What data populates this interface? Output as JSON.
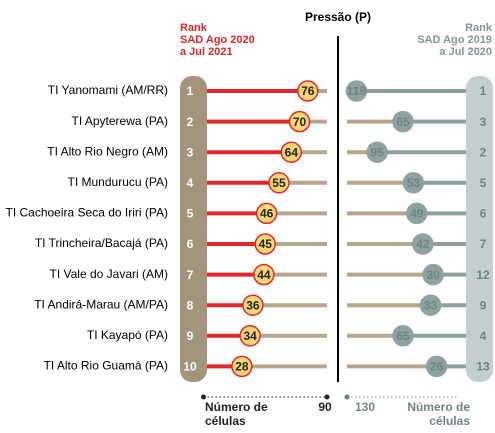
{
  "title": "Pressão (P)",
  "chart_data": [
    {
      "type": "lollipop",
      "title": [
        "Rank",
        "SAD Ago 2020",
        "a Jul 2021"
      ],
      "color": "#e3262b",
      "rest_color": "#b3a68a",
      "pill_color": "#a39579",
      "bubble_color": "#f7d774",
      "categories": [
        "TI Yanomami (AM/RR)",
        "TI Apyterewa (PA)",
        "TI Alto Rio Negro (AM)",
        "TI Mundurucu (PA)",
        "TI Cachoeira Seca do Iriri (PA)",
        "TI Trincheira/Bacajá (PA)",
        "TI Vale do Javari (AM)",
        "TI Andirá-Marau (AM/PA)",
        "TI Kayapó (PA)",
        "TI Alto Rio Guamá (PA)"
      ],
      "ranks": [
        1,
        2,
        3,
        4,
        5,
        6,
        7,
        8,
        9,
        10
      ],
      "values": [
        76,
        70,
        64,
        55,
        46,
        45,
        44,
        36,
        34,
        28
      ],
      "xlim": [
        0,
        90
      ],
      "xticks": [
        90
      ],
      "xlabel": [
        "Número de",
        "células"
      ]
    },
    {
      "type": "lollipop",
      "title": [
        "Rank",
        "SAD Ago 2019",
        "a Jul 2020"
      ],
      "color": "#8c9f9f",
      "rest_color": "#b3a68a",
      "pill_color": "#c3cfcf",
      "bubble_color": "#8fa2a2",
      "ranks": [
        1,
        3,
        2,
        5,
        6,
        7,
        12,
        9,
        4,
        13
      ],
      "values": [
        119,
        65,
        95,
        53,
        49,
        42,
        30,
        33,
        65,
        26
      ],
      "xlim": [
        130,
        0
      ],
      "xticks": [
        130
      ],
      "xlabel": [
        "Número de",
        "células"
      ]
    }
  ]
}
